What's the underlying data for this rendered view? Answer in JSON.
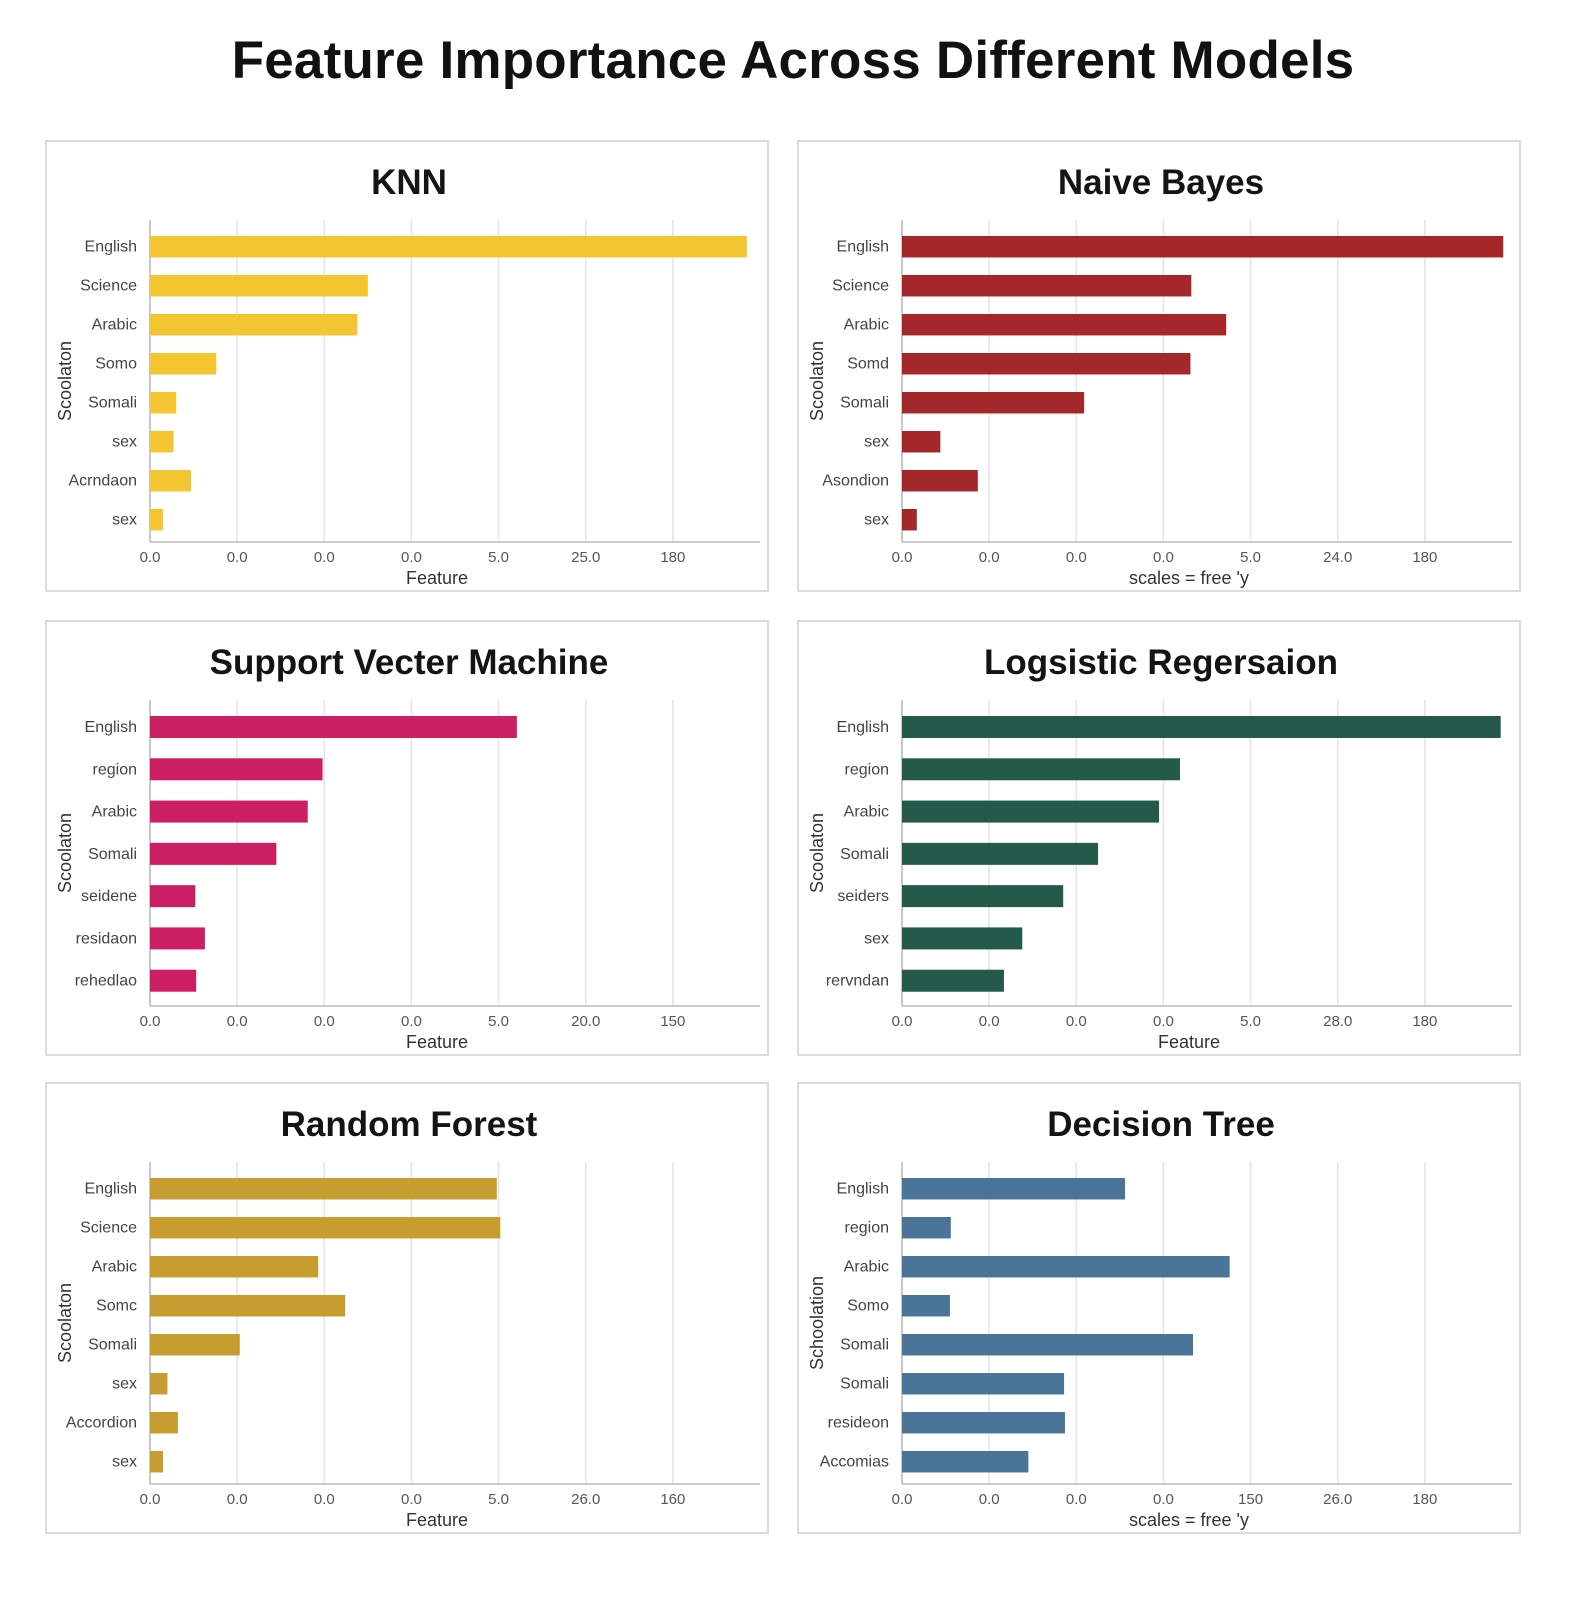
{
  "title": "Feature Importance Across Different Models",
  "chart_data": [
    {
      "type": "bar",
      "orientation": "horizontal",
      "title": "KNN",
      "xlabel": "Feature",
      "ylabel": "Scoolaton",
      "color": "#f3c530",
      "tick_labels": [
        "0.0",
        "0.0",
        "0.0",
        "0.0",
        "5.0",
        "25.0",
        "180"
      ],
      "xlim": [
        0,
        7
      ],
      "categories": [
        "English",
        "Science",
        "Arabic",
        "Somo",
        "Somali",
        "sex",
        "Acrndaon",
        "sex"
      ],
      "values": [
        6.85,
        2.5,
        2.38,
        0.76,
        0.3,
        0.27,
        0.47,
        0.15
      ]
    },
    {
      "type": "bar",
      "orientation": "horizontal",
      "title": "Naive Bayes",
      "xlabel": "scales = free 'y",
      "ylabel": "Scoolaton",
      "color": "#a4282a",
      "tick_labels": [
        "0.0",
        "0.0",
        "0.0",
        "0.0",
        "5.0",
        "24.0",
        "180"
      ],
      "xlim": [
        0,
        7
      ],
      "categories": [
        "English",
        "Science",
        "Arabic",
        "Somd",
        "Somali",
        "sex",
        "Asondion",
        "sex"
      ],
      "values": [
        6.9,
        3.32,
        3.72,
        3.31,
        2.09,
        0.44,
        0.87,
        0.17
      ]
    },
    {
      "type": "bar",
      "orientation": "horizontal",
      "title": "Support Vecter Machine",
      "xlabel": "Feature",
      "ylabel": "Scoolaton",
      "color": "#cc1e62",
      "tick_labels": [
        "0.0",
        "0.0",
        "0.0",
        "0.0",
        "5.0",
        "20.0",
        "150"
      ],
      "xlim": [
        0,
        7
      ],
      "categories": [
        "English",
        "region",
        "Arabic",
        "Somali",
        "seidene",
        "residaon",
        "rehedlao"
      ],
      "values": [
        4.21,
        1.98,
        1.81,
        1.45,
        0.52,
        0.63,
        0.53
      ]
    },
    {
      "type": "bar",
      "orientation": "horizontal",
      "title": "Logsistic Regersaion",
      "xlabel": "Feature",
      "ylabel": "Scoolaton",
      "color": "#245a4a",
      "tick_labels": [
        "0.0",
        "0.0",
        "0.0",
        "0.0",
        "5.0",
        "28.0",
        "180"
      ],
      "xlim": [
        0,
        7
      ],
      "categories": [
        "English",
        "region",
        "Arabic",
        "Somali",
        "seiders",
        "sex",
        "rervndan"
      ],
      "values": [
        6.87,
        3.19,
        2.95,
        2.25,
        1.85,
        1.38,
        1.17
      ]
    },
    {
      "type": "bar",
      "orientation": "horizontal",
      "title": "Random Forest",
      "xlabel": "Feature",
      "ylabel": "Scoolaton",
      "color": "#c89d30",
      "tick_labels": [
        "0.0",
        "0.0",
        "0.0",
        "0.0",
        "5.0",
        "26.0",
        "160"
      ],
      "xlim": [
        0,
        7
      ],
      "categories": [
        "English",
        "Science",
        "Arabic",
        "Somc",
        "Somali",
        "sex",
        "Accordion",
        "sex"
      ],
      "values": [
        3.98,
        4.02,
        1.93,
        2.24,
        1.03,
        0.2,
        0.32,
        0.15
      ]
    },
    {
      "type": "bar",
      "orientation": "horizontal",
      "title": "Decision Tree",
      "xlabel": "scales = free 'y",
      "ylabel": "Schoolation",
      "color": "#4a7598",
      "tick_labels": [
        "0.0",
        "0.0",
        "0.0",
        "0.0",
        "150",
        "26.0",
        "180"
      ],
      "xlim": [
        0,
        7
      ],
      "categories": [
        "English",
        "region",
        "Arabic",
        "Somo",
        "Somali",
        "Somali",
        "resideon",
        "Accomias"
      ],
      "values": [
        2.56,
        0.56,
        3.76,
        0.55,
        3.34,
        1.86,
        1.87,
        1.45
      ]
    }
  ]
}
